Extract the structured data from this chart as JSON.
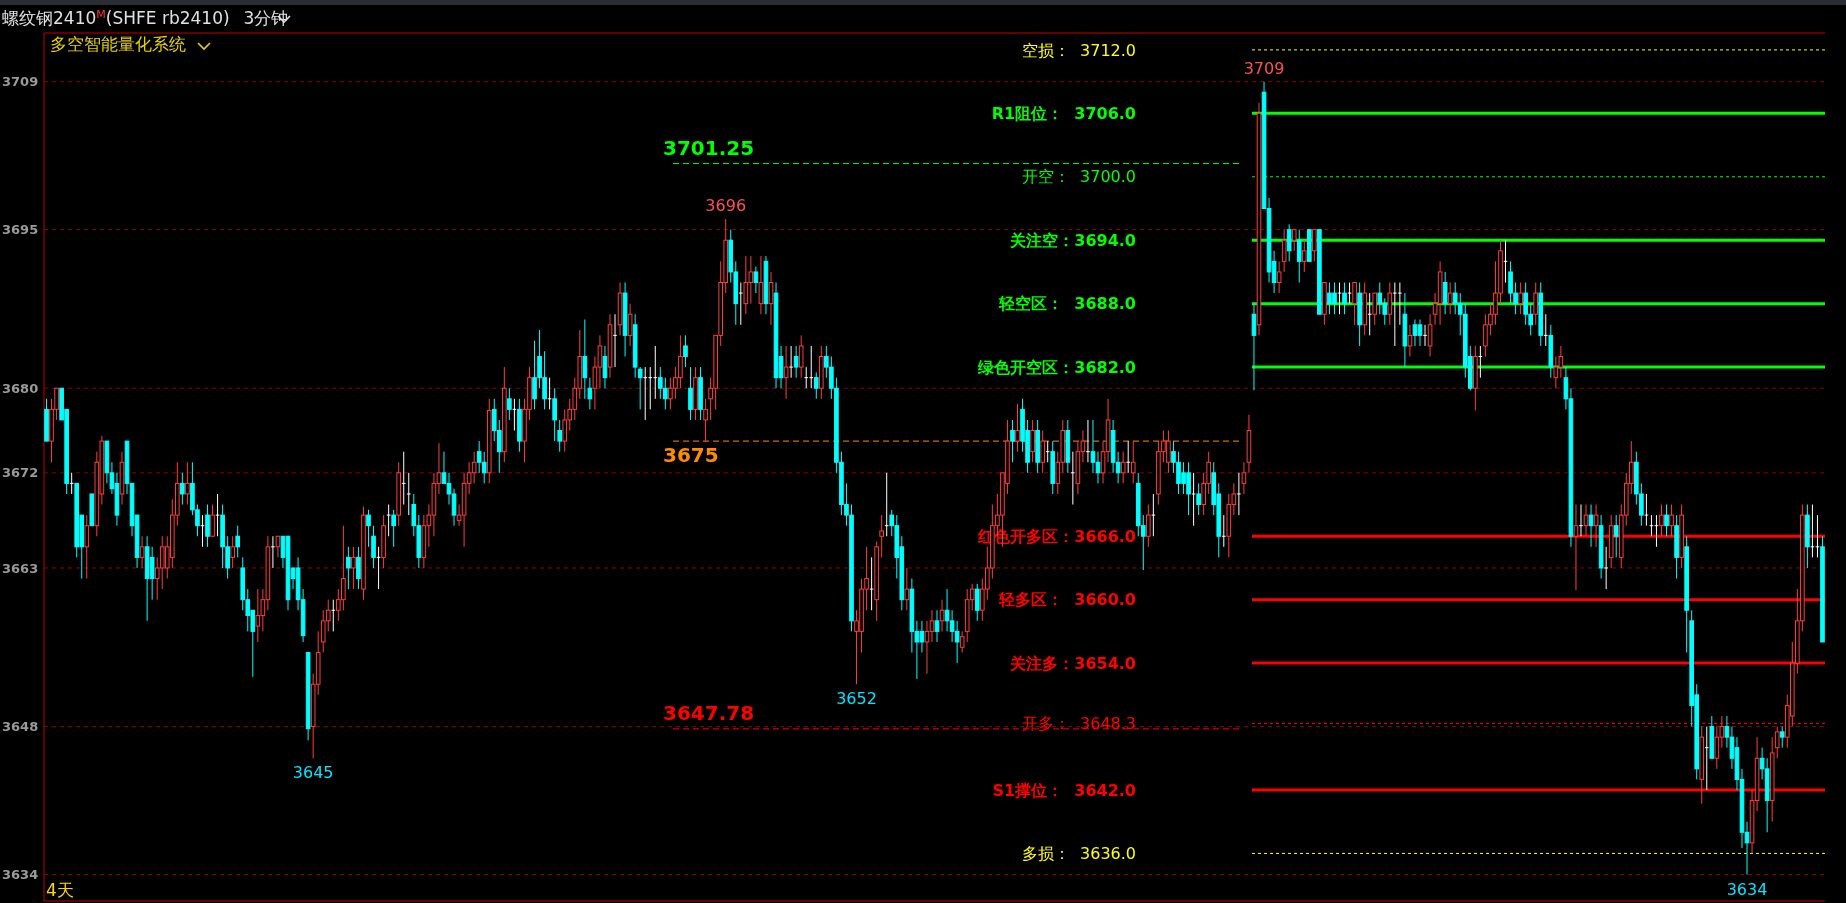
{
  "chart_data": {
    "type": "candlestick",
    "title": "螺纹钢2410$^{M}$(SHFE rb2410)",
    "subtitle": "3分钟",
    "annotations": [
      "多空智能量化系统",
      "4天",
      {
        "text": "3709",
        "y": 3709
      },
      {
        "text": "3696",
        "y": 3696
      },
      {
        "text": "3645",
        "y": 3645
      },
      {
        "text": "3652",
        "y": 3652
      },
      {
        "text": "3634",
        "y": 3634
      }
    ],
    "ylim": [
      3631.5,
      3713.6
    ],
    "yticks": [
      3709,
      3695,
      3680,
      3672,
      3663,
      3648,
      3634
    ],
    "grid": "y",
    "tick_labels": "y",
    "ref_lines": [
      {
        "axis": "y",
        "value": 3712,
        "label": "空损：  3712.0",
        "color": "#ffff00",
        "line_style": "dotted"
      },
      {
        "axis": "y",
        "value": 3706,
        "label": "R1阻位：  3706.0",
        "color": "#00ff00",
        "line_style": "solid"
      },
      {
        "axis": "y",
        "value": 3700,
        "label": "开空：  3700.0",
        "color": "#00ff00",
        "line_style": "dotted"
      },
      {
        "axis": "y",
        "value": 3694,
        "label": "关注空：3694.0",
        "color": "#00ff00",
        "line_style": "solid"
      },
      {
        "axis": "y",
        "value": 3688,
        "label": "轻空区：  3688.0",
        "color": "#00ff00",
        "line_style": "solid"
      },
      {
        "axis": "y",
        "value": 3682,
        "label": "绿色开空区：3682.0",
        "color": "#00ff00",
        "line_style": "solid"
      },
      {
        "axis": "y",
        "value": 3666,
        "label": "红色开多区：3666.0",
        "color": "#ff0000",
        "line_style": "solid"
      },
      {
        "axis": "y",
        "value": 3660,
        "label": "轻多区：  3660.0",
        "color": "#ff0000",
        "line_style": "solid"
      },
      {
        "axis": "y",
        "value": 3654,
        "label": "关注多：3654.0",
        "color": "#ff0000",
        "line_style": "solid"
      },
      {
        "axis": "y",
        "value": 3648.3,
        "label": "开多：  3648.3",
        "color": "#ff0000",
        "line_style": "dotted"
      },
      {
        "axis": "y",
        "value": 3642,
        "label": "S1撑位：  3642.0",
        "color": "#ff0000",
        "line_style": "solid"
      },
      {
        "axis": "y",
        "value": 3636,
        "label": "多损：  3636.0",
        "color": "#ffff00",
        "line_style": "dotted"
      },
      {
        "axis": "y",
        "value": 3701.25,
        "label": "3701.25",
        "color": "#00ff00",
        "line_style": "dashed"
      },
      {
        "axis": "y",
        "value": 3675,
        "label": "3675",
        "color": "#ff8c00",
        "line_style": "dashed"
      },
      {
        "axis": "y",
        "value": 3647.78,
        "label": "3647.78",
        "color": "#ff0000",
        "line_style": "dashed"
      }
    ],
    "categories": [
      null,
      null,
      null,
      null,
      null,
      null,
      null,
      null,
      null,
      null,
      null,
      null,
      null,
      null,
      null,
      null,
      null,
      null,
      null,
      null,
      null,
      null,
      null,
      null,
      null,
      null,
      null,
      null,
      null,
      null,
      null,
      null,
      null,
      null,
      null,
      null,
      null,
      null,
      null,
      null,
      null,
      null,
      null,
      null,
      null,
      null,
      null,
      null,
      null,
      null,
      null,
      null,
      null,
      null,
      null,
      null,
      null,
      null,
      null,
      null,
      null,
      null,
      null,
      null,
      null,
      null,
      null,
      null,
      null,
      null,
      null,
      null,
      null,
      null,
      null,
      null,
      null,
      null,
      null,
      null,
      null,
      null,
      null,
      null,
      null,
      null,
      null,
      null,
      null,
      null,
      null,
      null,
      null,
      null,
      null,
      null,
      null,
      null,
      null,
      null,
      null,
      null,
      null,
      null,
      null,
      null,
      null,
      null,
      null,
      null,
      null,
      null,
      null,
      null,
      null,
      null,
      null,
      null,
      null,
      null,
      null,
      null,
      null,
      null,
      null,
      null,
      null,
      null,
      null,
      null,
      null,
      null,
      null,
      null,
      null,
      null,
      null,
      null,
      null,
      null,
      null,
      null,
      null,
      null,
      null,
      null,
      null,
      null,
      null,
      null,
      null,
      null,
      null,
      null,
      null,
      null,
      null,
      null,
      null,
      null,
      null,
      null,
      null,
      null,
      null,
      null,
      null,
      null,
      null,
      null,
      null,
      null,
      null,
      null,
      null,
      null,
      null,
      null,
      null,
      null,
      null,
      null,
      null,
      null,
      null,
      null,
      null,
      null,
      null,
      null,
      null,
      null,
      null,
      null,
      null,
      null,
      null,
      null,
      null,
      null,
      null,
      null,
      null,
      null,
      null,
      null,
      null,
      null,
      null,
      null,
      null,
      null,
      null,
      null,
      null,
      null,
      null,
      null,
      null,
      null,
      null,
      null,
      null,
      null,
      null,
      null,
      null,
      null,
      null,
      null,
      null,
      null,
      null,
      null,
      null,
      null,
      null,
      null,
      null,
      null,
      null,
      null,
      null,
      null,
      null,
      null,
      null,
      null,
      null,
      null,
      null,
      null,
      null,
      null,
      null,
      null,
      null,
      null,
      null,
      null,
      null,
      null,
      null,
      null,
      null,
      null,
      null,
      null,
      null,
      null,
      null,
      null,
      null,
      null,
      null,
      null,
      null,
      null,
      null,
      null,
      null,
      null,
      null,
      null,
      null,
      null,
      null,
      null,
      null,
      null,
      null,
      null,
      null,
      null,
      null,
      null,
      null,
      null,
      null,
      null,
      null,
      null,
      null,
      null,
      null,
      null,
      null,
      null,
      null,
      null,
      null,
      null,
      null,
      null,
      null,
      null,
      null,
      null,
      null,
      null,
      null,
      null,
      null,
      null,
      null,
      null,
      null,
      null,
      null,
      null,
      null,
      null,
      null,
      null,
      null,
      null,
      null,
      null,
      null,
      null,
      null,
      null,
      null,
      null,
      null,
      null,
      null,
      null,
      null,
      null,
      null,
      null,
      null,
      null
    ],
    "ohlc": [
      [
        3678,
        3679,
        3675,
        3675
      ],
      [
        3675,
        3679,
        3673,
        3678
      ],
      [
        3678,
        3680,
        3677,
        3680
      ],
      [
        3680,
        3680,
        3677,
        3677
      ],
      [
        3678,
        3678,
        3670,
        3671
      ],
      [
        3671,
        3672,
        3670,
        3671
      ],
      [
        3671,
        3671,
        3664,
        3665
      ],
      [
        3668,
        3668,
        3662,
        3665
      ],
      [
        3665,
        3668,
        3662,
        3667
      ],
      [
        3670,
        3670,
        3667,
        3667
      ],
      [
        3667,
        3674,
        3666,
        3673
      ],
      [
        3670,
        3675.5,
        3669,
        3675
      ],
      [
        3675,
        3675,
        3671,
        3672
      ],
      [
        3672,
        3673,
        3670,
        3670.5
      ],
      [
        3671,
        3672,
        3667,
        3668
      ],
      [
        3670,
        3674,
        3669,
        3673
      ],
      [
        3675,
        3675,
        3670,
        3671
      ],
      [
        3671,
        3671,
        3666,
        3667
      ],
      [
        3668,
        3668,
        3663,
        3664
      ],
      [
        3664,
        3666,
        3663,
        3665
      ],
      [
        3665,
        3666,
        3658,
        3662
      ],
      [
        3664,
        3665,
        3660,
        3662
      ],
      [
        3662,
        3664,
        3660,
        3663
      ],
      [
        3663,
        3666,
        3661,
        3665
      ],
      [
        3663,
        3666,
        3662,
        3665
      ],
      [
        3664,
        3669.5,
        3663,
        3668
      ],
      [
        3668,
        3673,
        3667,
        3671
      ],
      [
        3671,
        3672,
        3669,
        3670
      ],
      [
        3670,
        3673,
        3669,
        3671
      ],
      [
        3671,
        3673,
        3668,
        3668.5
      ],
      [
        3668.5,
        3669,
        3666,
        3667
      ],
      [
        3667,
        3668,
        3665,
        3667
      ],
      [
        3668,
        3669,
        3665,
        3666
      ],
      [
        3666,
        3669,
        3666,
        3668
      ],
      [
        3668,
        3670,
        3666,
        3668
      ],
      [
        3668,
        3669,
        3663,
        3665
      ],
      [
        3665,
        3666,
        3662,
        3663
      ],
      [
        3664,
        3666,
        3663,
        3665
      ],
      [
        3666,
        3667,
        3664,
        3665
      ],
      [
        3663,
        3664,
        3659,
        3660
      ],
      [
        3660,
        3661,
        3657,
        3658.5
      ],
      [
        3659,
        3659,
        3652.7,
        3657
      ],
      [
        3657.5,
        3661,
        3656,
        3658.5
      ],
      [
        3658.5,
        3661,
        3657,
        3660
      ],
      [
        3660,
        3666,
        3659,
        3665
      ],
      [
        3665,
        3666,
        3663,
        3665
      ],
      [
        3665,
        3666,
        3664,
        3666
      ],
      [
        3666,
        3666,
        3663,
        3664
      ],
      [
        3666,
        3666,
        3659,
        3660
      ],
      [
        3663,
        3663,
        3661,
        3662
      ],
      [
        3663,
        3664,
        3659,
        3660
      ],
      [
        3660,
        3661,
        3656,
        3656.6
      ],
      [
        3655,
        3655,
        3646.7,
        3647.8
      ],
      [
        3648,
        3653,
        3645,
        3652
      ],
      [
        3652,
        3657,
        3651,
        3655
      ],
      [
        3656,
        3659,
        3655,
        3658
      ],
      [
        3658,
        3660,
        3657,
        3659
      ],
      [
        3659,
        3660,
        3657,
        3659
      ],
      [
        3659,
        3661,
        3658,
        3660
      ],
      [
        3660,
        3667,
        3659,
        3662
      ],
      [
        3664,
        3665,
        3661,
        3663
      ],
      [
        3663,
        3665,
        3661,
        3664
      ],
      [
        3664,
        3665,
        3661,
        3662
      ],
      [
        3661,
        3668.8,
        3660,
        3668
      ],
      [
        3668,
        3668.5,
        3665,
        3667
      ],
      [
        3666,
        3667,
        3663,
        3664
      ],
      [
        3664,
        3665,
        3661,
        3664
      ],
      [
        3664,
        3668,
        3663,
        3667
      ],
      [
        3668,
        3669,
        3666,
        3668
      ],
      [
        3668,
        3668.5,
        3665,
        3667
      ],
      [
        3668,
        3673,
        3667,
        3672
      ],
      [
        3671,
        3674,
        3669,
        3671
      ],
      [
        3670,
        3672,
        3668,
        3670
      ],
      [
        3669,
        3670,
        3666,
        3667
      ],
      [
        3667,
        3668,
        3663,
        3664
      ],
      [
        3664,
        3668,
        3663,
        3667
      ],
      [
        3667,
        3669,
        3665,
        3668
      ],
      [
        3668,
        3672,
        3666,
        3671
      ],
      [
        3671,
        3674.8,
        3670,
        3672
      ],
      [
        3672,
        3674,
        3671,
        3671
      ],
      [
        3671,
        3672,
        3669,
        3670
      ],
      [
        3670,
        3670.5,
        3667,
        3668
      ],
      [
        3667.5,
        3669,
        3667,
        3668
      ],
      [
        3668,
        3672,
        3665,
        3671
      ],
      [
        3671,
        3673,
        3670,
        3672
      ],
      [
        3672,
        3674,
        3671,
        3673
      ],
      [
        3674,
        3675,
        3672,
        3673
      ],
      [
        3673,
        3674,
        3671,
        3672
      ],
      [
        3672,
        3679,
        3671,
        3677.9
      ],
      [
        3678,
        3679,
        3675,
        3676
      ],
      [
        3676,
        3677,
        3672,
        3674
      ],
      [
        3674,
        3682,
        3673,
        3680
      ],
      [
        3679,
        3680,
        3677,
        3678
      ],
      [
        3678,
        3679,
        3676,
        3678
      ],
      [
        3678,
        3679,
        3674,
        3675
      ],
      [
        3675,
        3679,
        3673,
        3678
      ],
      [
        3678,
        3682,
        3677,
        3681
      ],
      [
        3681,
        3684.5,
        3678,
        3679
      ],
      [
        3683,
        3685.5,
        3680,
        3681
      ],
      [
        3681,
        3683.5,
        3678,
        3679
      ],
      [
        3679,
        3681,
        3678,
        3679
      ],
      [
        3679,
        3680,
        3675,
        3677
      ],
      [
        3676,
        3677,
        3674,
        3675
      ],
      [
        3675,
        3678,
        3674,
        3677
      ],
      [
        3677,
        3679,
        3676,
        3678
      ],
      [
        3678,
        3681,
        3677,
        3680
      ],
      [
        3680,
        3685.5,
        3679,
        3683
      ],
      [
        3683,
        3686.5,
        3679,
        3681
      ],
      [
        3680,
        3681,
        3678,
        3679
      ],
      [
        3680,
        3683,
        3678,
        3682
      ],
      [
        3682,
        3685,
        3680,
        3684
      ],
      [
        3683,
        3684,
        3680,
        3681
      ],
      [
        3682,
        3687,
        3681,
        3686
      ],
      [
        3685,
        3687,
        3682,
        3685
      ],
      [
        3686,
        3690,
        3685,
        3689
      ],
      [
        3689,
        3690,
        3683,
        3685
      ],
      [
        3685,
        3688,
        3684,
        3687
      ],
      [
        3686,
        3687,
        3681,
        3682
      ],
      [
        3681.8,
        3682,
        3678,
        3681
      ],
      [
        3681,
        3682,
        3677,
        3681
      ],
      [
        3681,
        3682,
        3678,
        3681
      ],
      [
        3681,
        3684,
        3679,
        3681
      ],
      [
        3681,
        3682,
        3679,
        3680
      ],
      [
        3680,
        3681,
        3678,
        3679
      ],
      [
        3679,
        3681,
        3678,
        3680
      ],
      [
        3680,
        3682,
        3679,
        3681
      ],
      [
        3681,
        3685,
        3680,
        3683
      ],
      [
        3684,
        3685,
        3682,
        3683
      ],
      [
        3680,
        3682,
        3677,
        3678
      ],
      [
        3678,
        3682,
        3677,
        3681
      ],
      [
        3681,
        3682,
        3677,
        3678
      ],
      [
        3677,
        3679,
        3674.9,
        3678
      ],
      [
        3679,
        3681,
        3677,
        3680
      ],
      [
        3680,
        3685,
        3678,
        3685
      ],
      [
        3685,
        3692,
        3684,
        3690
      ],
      [
        3690,
        3696,
        3689,
        3694
      ],
      [
        3694,
        3695,
        3690,
        3691
      ],
      [
        3691,
        3692,
        3686,
        3688
      ],
      [
        3689,
        3690,
        3686,
        3689
      ],
      [
        3688,
        3692.5,
        3687,
        3690
      ],
      [
        3690,
        3692.5,
        3688,
        3691
      ],
      [
        3691,
        3691.5,
        3689,
        3690
      ],
      [
        3688,
        3692.5,
        3687,
        3690
      ],
      [
        3692,
        3692.5,
        3687,
        3688
      ],
      [
        3688,
        3691,
        3686,
        3690
      ],
      [
        3689,
        3690,
        3680,
        3681
      ],
      [
        3683,
        3684,
        3680,
        3681
      ],
      [
        3681,
        3684,
        3679,
        3682
      ],
      [
        3682,
        3684,
        3681,
        3682
      ],
      [
        3683,
        3684,
        3681,
        3682
      ],
      [
        3682,
        3685,
        3681,
        3684
      ],
      [
        3681,
        3682,
        3680,
        3681
      ],
      [
        3681,
        3684,
        3680,
        3681
      ],
      [
        3681,
        3681.5,
        3679,
        3680
      ],
      [
        3680,
        3684,
        3679,
        3683
      ],
      [
        3683,
        3684,
        3681,
        3682
      ],
      [
        3682,
        3683,
        3679,
        3680
      ],
      [
        3680,
        3681,
        3672,
        3673
      ],
      [
        3673,
        3674,
        3668,
        3669
      ],
      [
        3669,
        3671,
        3667,
        3668
      ],
      [
        3668,
        3669,
        3657,
        3658
      ],
      [
        3657,
        3659,
        3652,
        3658
      ],
      [
        3657,
        3662,
        3655,
        3661
      ],
      [
        3661,
        3665,
        3659,
        3662
      ],
      [
        3661,
        3664,
        3659,
        3661
      ],
      [
        3660,
        3665.5,
        3658,
        3665
      ],
      [
        3666,
        3668,
        3664,
        3666.5
      ],
      [
        3667,
        3672,
        3666,
        3667
      ],
      [
        3668,
        3668.5,
        3666,
        3667
      ],
      [
        3667,
        3668,
        3662,
        3664
      ],
      [
        3665,
        3666,
        3659,
        3660
      ],
      [
        3660,
        3663,
        3659,
        3661
      ],
      [
        3661,
        3662,
        3655,
        3657
      ],
      [
        3657,
        3658,
        3652.5,
        3656
      ],
      [
        3657,
        3658,
        3655,
        3656
      ],
      [
        3656,
        3658,
        3653,
        3657
      ],
      [
        3657,
        3659,
        3656,
        3658
      ],
      [
        3658,
        3659,
        3656,
        3657
      ],
      [
        3658,
        3660,
        3657,
        3659
      ],
      [
        3659,
        3661,
        3657,
        3658
      ],
      [
        3658,
        3659,
        3656,
        3657
      ],
      [
        3657,
        3658,
        3654,
        3656
      ],
      [
        3655.5,
        3657,
        3655,
        3656.5
      ],
      [
        3657,
        3661,
        3656,
        3660
      ],
      [
        3660,
        3661.5,
        3659,
        3661
      ],
      [
        3661,
        3661.5,
        3658,
        3659
      ],
      [
        3659,
        3662,
        3658,
        3661
      ],
      [
        3661,
        3665,
        3660,
        3663
      ],
      [
        3663,
        3669,
        3662,
        3667
      ],
      [
        3667,
        3670,
        3666,
        3668
      ],
      [
        3668,
        3672,
        3665,
        3672
      ],
      [
        3671,
        3677,
        3670,
        3675
      ],
      [
        3676,
        3677,
        3673,
        3675
      ],
      [
        3675,
        3678.5,
        3674,
        3676
      ],
      [
        3678,
        3679,
        3674,
        3675
      ],
      [
        3676,
        3677,
        3672,
        3673
      ],
      [
        3674,
        3677,
        3673,
        3676
      ],
      [
        3676,
        3677,
        3672,
        3673
      ],
      [
        3673,
        3676,
        3672,
        3675
      ],
      [
        3674,
        3675,
        3673,
        3674
      ],
      [
        3674,
        3675,
        3670,
        3671
      ],
      [
        3671,
        3674,
        3670,
        3673
      ],
      [
        3673,
        3677,
        3672,
        3676
      ],
      [
        3676,
        3677,
        3672,
        3673
      ],
      [
        3672,
        3674,
        3669,
        3672
      ],
      [
        3671,
        3675,
        3670,
        3674
      ],
      [
        3674,
        3676,
        3673,
        3675
      ],
      [
        3674,
        3677,
        3673,
        3674
      ],
      [
        3674,
        3677,
        3672,
        3673
      ],
      [
        3673,
        3674,
        3671,
        3672
      ],
      [
        3672,
        3675,
        3671,
        3674
      ],
      [
        3674,
        3679,
        3673,
        3677
      ],
      [
        3676,
        3677,
        3672,
        3673
      ],
      [
        3673,
        3674,
        3671,
        3672
      ],
      [
        3672,
        3674,
        3671,
        3673
      ],
      [
        3673,
        3675,
        3672,
        3673
      ],
      [
        3672,
        3675,
        3671,
        3673
      ],
      [
        3671,
        3672,
        3666,
        3667
      ],
      [
        3667,
        3668,
        3662.8,
        3666
      ],
      [
        3666,
        3669,
        3665,
        3668
      ],
      [
        3668,
        3670,
        3666,
        3668
      ],
      [
        3670,
        3675,
        3669,
        3674
      ],
      [
        3674,
        3676,
        3673,
        3675
      ],
      [
        3673,
        3676,
        3672,
        3675
      ],
      [
        3674,
        3675,
        3672,
        3673
      ],
      [
        3673,
        3674,
        3670,
        3671
      ],
      [
        3672,
        3673,
        3670,
        3671
      ],
      [
        3672,
        3673,
        3668,
        3670
      ],
      [
        3670,
        3672,
        3667,
        3670
      ],
      [
        3670,
        3671,
        3668,
        3669
      ],
      [
        3669,
        3672,
        3668,
        3671
      ],
      [
        3671,
        3674,
        3670,
        3673
      ],
      [
        3672,
        3673,
        3668,
        3669
      ],
      [
        3670,
        3671,
        3664,
        3666
      ],
      [
        3666,
        3668,
        3665,
        3666
      ],
      [
        3666,
        3670,
        3664,
        3669
      ],
      [
        3669,
        3671,
        3668,
        3670
      ],
      [
        3670,
        3672,
        3668,
        3670
      ],
      [
        3671,
        3673,
        3670,
        3672
      ],
      [
        3673,
        3677.5,
        3672,
        3676
      ],
      [
        3687,
        3688,
        3679.8,
        3685
      ],
      [
        3686,
        3707,
        3685,
        3706
      ],
      [
        3708,
        3709,
        3697,
        3697
      ],
      [
        3697,
        3698,
        3690,
        3691
      ],
      [
        3692,
        3693,
        3689,
        3690
      ],
      [
        3690,
        3692,
        3689,
        3691
      ],
      [
        3692,
        3695,
        3691,
        3694
      ],
      [
        3695,
        3695.5,
        3692,
        3693
      ],
      [
        3694,
        3695,
        3693,
        3695
      ],
      [
        3694,
        3695,
        3690,
        3692
      ],
      [
        3692,
        3694,
        3691,
        3693
      ],
      [
        3695,
        3695,
        3692,
        3692
      ],
      [
        3693,
        3695,
        3692,
        3695
      ],
      [
        3695,
        3695,
        3687,
        3687
      ],
      [
        3687,
        3690,
        3686,
        3690
      ],
      [
        3689,
        3690,
        3687,
        3688
      ],
      [
        3689,
        3690,
        3687,
        3688
      ],
      [
        3689,
        3690,
        3687,
        3689
      ],
      [
        3689,
        3690,
        3687,
        3688
      ],
      [
        3689,
        3690,
        3688,
        3689
      ],
      [
        3688,
        3690,
        3686,
        3690
      ],
      [
        3689,
        3690,
        3684,
        3686
      ],
      [
        3686,
        3690,
        3685,
        3689
      ],
      [
        3687,
        3689,
        3685,
        3687
      ],
      [
        3687,
        3689,
        3686,
        3689
      ],
      [
        3689,
        3690,
        3687,
        3688
      ],
      [
        3688,
        3688.5,
        3686,
        3687
      ],
      [
        3687,
        3690,
        3686,
        3689
      ],
      [
        3689,
        3690,
        3684,
        3689
      ],
      [
        3689,
        3690,
        3686,
        3689
      ],
      [
        3687,
        3689,
        3682,
        3684
      ],
      [
        3684,
        3686,
        3683,
        3685
      ],
      [
        3686,
        3686.5,
        3684,
        3685
      ],
      [
        3686,
        3686.5,
        3684,
        3685
      ],
      [
        3685,
        3686,
        3684,
        3685
      ],
      [
        3684,
        3687,
        3683,
        3686
      ],
      [
        3687,
        3689,
        3686,
        3688
      ],
      [
        3688,
        3692,
        3686,
        3691
      ],
      [
        3690,
        3691,
        3687,
        3688
      ],
      [
        3688,
        3690,
        3687,
        3689
      ],
      [
        3689,
        3690,
        3687,
        3688
      ],
      [
        3688,
        3689,
        3685,
        3687
      ],
      [
        3687,
        3688,
        3681,
        3682
      ],
      [
        3683,
        3684,
        3679.8,
        3680
      ],
      [
        3680,
        3684,
        3677.9,
        3683
      ],
      [
        3683,
        3684,
        3681,
        3683
      ],
      [
        3684,
        3687,
        3683,
        3686
      ],
      [
        3686,
        3688,
        3685,
        3687
      ],
      [
        3687,
        3692,
        3686,
        3689
      ],
      [
        3689,
        3694,
        3688,
        3693
      ],
      [
        3692,
        3694,
        3690,
        3692
      ],
      [
        3691,
        3692,
        3688,
        3689
      ],
      [
        3689,
        3690,
        3687,
        3688
      ],
      [
        3688,
        3690,
        3687,
        3689
      ],
      [
        3689,
        3690,
        3686,
        3687
      ],
      [
        3687,
        3688,
        3685,
        3686
      ],
      [
        3687,
        3690,
        3686,
        3689
      ],
      [
        3689,
        3690,
        3684,
        3685
      ],
      [
        3685,
        3687,
        3684,
        3685
      ],
      [
        3685,
        3686,
        3681,
        3682
      ],
      [
        3681,
        3683,
        3680,
        3682
      ],
      [
        3682,
        3684,
        3681,
        3683
      ],
      [
        3681,
        3682,
        3678,
        3679
      ],
      [
        3679,
        3680,
        3665,
        3666
      ],
      [
        3666,
        3669,
        3660.9,
        3667
      ],
      [
        3667,
        3669,
        3666,
        3667
      ],
      [
        3667,
        3669,
        3666,
        3668
      ],
      [
        3668,
        3669,
        3665,
        3667
      ],
      [
        3667,
        3669,
        3665,
        3668
      ],
      [
        3667,
        3668,
        3662,
        3663
      ],
      [
        3663,
        3665,
        3661,
        3663
      ],
      [
        3664,
        3668,
        3663,
        3667
      ],
      [
        3667,
        3668,
        3664,
        3666
      ],
      [
        3664,
        3669,
        3663,
        3668
      ],
      [
        3668,
        3672,
        3667,
        3671
      ],
      [
        3671,
        3675,
        3670,
        3673
      ],
      [
        3673,
        3674,
        3669,
        3670
      ],
      [
        3670,
        3671,
        3667,
        3668
      ],
      [
        3668,
        3670,
        3667,
        3668
      ],
      [
        3667,
        3668,
        3666,
        3667
      ],
      [
        3667,
        3668,
        3665,
        3667
      ],
      [
        3667,
        3669,
        3666,
        3668
      ],
      [
        3668,
        3669,
        3666,
        3667
      ],
      [
        3667,
        3669,
        3666,
        3668
      ],
      [
        3667,
        3668,
        3662,
        3664
      ],
      [
        3664,
        3669,
        3663,
        3668
      ],
      [
        3665,
        3666,
        3655,
        3659
      ],
      [
        3658,
        3659,
        3648,
        3650
      ],
      [
        3651,
        3652,
        3643,
        3644
      ],
      [
        3643,
        3648,
        3640.7,
        3647
      ],
      [
        3646,
        3648,
        3642,
        3646
      ],
      [
        3648,
        3649,
        3645,
        3645
      ],
      [
        3645,
        3648,
        3644,
        3647
      ],
      [
        3647,
        3649,
        3646,
        3648
      ],
      [
        3648,
        3649,
        3646,
        3647
      ],
      [
        3647,
        3648,
        3644,
        3645
      ],
      [
        3646,
        3647,
        3642,
        3643
      ],
      [
        3643,
        3644,
        3636.5,
        3638
      ],
      [
        3638,
        3639,
        3634,
        3637
      ],
      [
        3637,
        3642,
        3636,
        3641
      ],
      [
        3641,
        3647,
        3640,
        3645
      ],
      [
        3645,
        3646,
        3643,
        3644
      ],
      [
        3644,
        3645,
        3638,
        3641
      ],
      [
        3641,
        3647,
        3639,
        3645.5
      ],
      [
        3646,
        3648,
        3645,
        3647.5
      ],
      [
        3647.5,
        3648,
        3646,
        3647
      ],
      [
        3647,
        3651,
        3646,
        3650
      ],
      [
        3649,
        3656,
        3648,
        3654
      ],
      [
        3654,
        3661,
        3653,
        3658
      ],
      [
        3658,
        3669,
        3657,
        3668
      ],
      [
        3668,
        3669,
        3663,
        3665
      ],
      [
        3665,
        3669,
        3664,
        3665
      ],
      [
        3665,
        3668,
        3664,
        3665
      ],
      [
        3665,
        3666,
        3656,
        3656
      ]
    ]
  }
}
